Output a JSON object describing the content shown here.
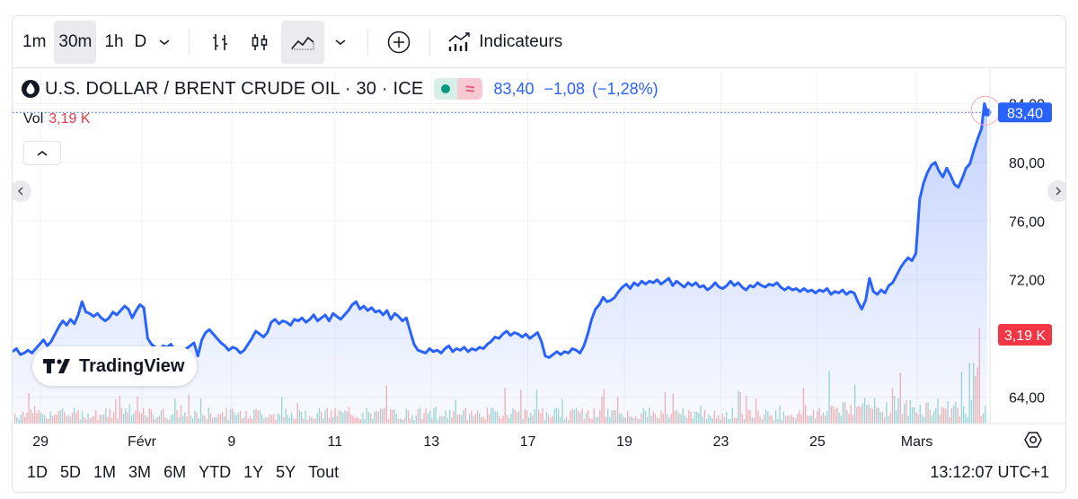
{
  "toolbar": {
    "intervals": [
      "1m",
      "30m",
      "1h",
      "D"
    ],
    "active_interval": "30m",
    "indicators_label": "Indicateurs"
  },
  "legend": {
    "title": "U.S. DOLLAR / BRENT CRUDE OIL · 30 · ICE",
    "price": "83,40",
    "change": "−1,08",
    "change_pct": "(−1,28%)",
    "vol_label": "Vol",
    "vol_value": "3,19 K"
  },
  "colors": {
    "line": "#2962ff",
    "up_volume": "#26a69a",
    "down_volume": "#ef5350",
    "price_tag": "#2962ff",
    "volume_tag": "#f23645"
  },
  "chart_data": {
    "type": "area",
    "ylim": [
      64,
      84
    ],
    "y_ticks": [
      "64,00",
      "68,00",
      "72,00",
      "76,00",
      "80,00",
      "84,00"
    ],
    "y_tick_values": [
      64,
      68,
      72,
      76,
      80,
      84
    ],
    "x_ticks": [
      "29",
      "Févr",
      "9",
      "11",
      "13",
      "17",
      "19",
      "23",
      "25",
      "Mars"
    ],
    "x_tick_positions": [
      0.5,
      11,
      20.3,
      31,
      41,
      51,
      61,
      71,
      81,
      91.3
    ],
    "x_range": [
      -2.4,
      98.6
    ],
    "price_label": "83,40",
    "volume_label": "3,19 K",
    "series": [
      {
        "values": [
          [
            -2.4,
            67.1
          ],
          [
            -2.0,
            67.3
          ],
          [
            -1.6,
            66.9
          ],
          [
            -1.2,
            67.0
          ],
          [
            -0.8,
            67.2
          ],
          [
            -0.4,
            67.0
          ],
          [
            0,
            67.3
          ],
          [
            0.4,
            67.6
          ],
          [
            0.8,
            67.9
          ],
          [
            1.2,
            67.5
          ],
          [
            1.6,
            67.8
          ],
          [
            2.0,
            68.3
          ],
          [
            2.4,
            68.8
          ],
          [
            2.8,
            69.2
          ],
          [
            3.2,
            68.9
          ],
          [
            3.6,
            69.3
          ],
          [
            4.0,
            69.0
          ],
          [
            4.4,
            69.6
          ],
          [
            4.8,
            70.5
          ],
          [
            5.2,
            69.8
          ],
          [
            5.6,
            69.7
          ],
          [
            6.0,
            69.5
          ],
          [
            6.4,
            69.7
          ],
          [
            6.8,
            69.4
          ],
          [
            7.2,
            69.2
          ],
          [
            7.6,
            69.4
          ],
          [
            8.0,
            69.8
          ],
          [
            8.4,
            69.6
          ],
          [
            8.8,
            69.9
          ],
          [
            9.2,
            70.2
          ],
          [
            9.6,
            70.0
          ],
          [
            10.0,
            69.4
          ],
          [
            10.4,
            69.9
          ],
          [
            10.8,
            70.3
          ],
          [
            11.2,
            70.1
          ],
          [
            11.6,
            68.0
          ],
          [
            12.0,
            67.6
          ],
          [
            12.4,
            67.4
          ],
          [
            12.8,
            67.2
          ],
          [
            13.2,
            67.5
          ],
          [
            13.6,
            67.4
          ],
          [
            14.0,
            67.6
          ],
          [
            14.4,
            67.2
          ],
          [
            14.8,
            66.9
          ],
          [
            15.2,
            67.0
          ],
          [
            15.6,
            67.3
          ],
          [
            16.0,
            67.5
          ],
          [
            16.4,
            67.7
          ],
          [
            16.8,
            66.8
          ],
          [
            17.2,
            67.9
          ],
          [
            17.6,
            68.4
          ],
          [
            18.0,
            68.6
          ],
          [
            18.4,
            68.3
          ],
          [
            18.8,
            68.0
          ],
          [
            19.2,
            67.7
          ],
          [
            19.6,
            67.5
          ],
          [
            20.0,
            67.2
          ],
          [
            20.4,
            67.4
          ],
          [
            20.8,
            67.3
          ],
          [
            21.2,
            67.0
          ],
          [
            21.6,
            67.2
          ],
          [
            22.0,
            67.6
          ],
          [
            22.4,
            68.0
          ],
          [
            22.8,
            68.5
          ],
          [
            23.2,
            68.3
          ],
          [
            23.6,
            68.1
          ],
          [
            24.0,
            68.4
          ],
          [
            24.4,
            69.1
          ],
          [
            24.8,
            69.3
          ],
          [
            25.2,
            69.0
          ],
          [
            25.6,
            69.2
          ],
          [
            26.0,
            69.1
          ],
          [
            26.4,
            68.9
          ],
          [
            26.8,
            69.3
          ],
          [
            27.2,
            69.2
          ],
          [
            27.6,
            69.4
          ],
          [
            28.0,
            69.1
          ],
          [
            28.4,
            69.3
          ],
          [
            28.8,
            69.6
          ],
          [
            29.2,
            69.2
          ],
          [
            29.6,
            69.4
          ],
          [
            30.0,
            69.6
          ],
          [
            30.4,
            69.2
          ],
          [
            30.8,
            69.7
          ],
          [
            31.2,
            69.5
          ],
          [
            31.6,
            69.3
          ],
          [
            32.0,
            69.6
          ],
          [
            32.4,
            69.9
          ],
          [
            32.8,
            70.3
          ],
          [
            33.2,
            70.5
          ],
          [
            33.6,
            70.0
          ],
          [
            34.0,
            70.2
          ],
          [
            34.4,
            69.9
          ],
          [
            34.8,
            70.1
          ],
          [
            35.2,
            69.8
          ],
          [
            35.6,
            69.9
          ],
          [
            36.0,
            69.6
          ],
          [
            36.4,
            69.9
          ],
          [
            36.8,
            69.3
          ],
          [
            37.2,
            69.7
          ],
          [
            37.6,
            69.5
          ],
          [
            38.0,
            69.2
          ],
          [
            38.4,
            69.4
          ],
          [
            38.8,
            68.5
          ],
          [
            39.2,
            67.6
          ],
          [
            39.6,
            67.2
          ],
          [
            40.0,
            67.1
          ],
          [
            40.4,
            67.0
          ],
          [
            40.8,
            67.3
          ],
          [
            41.2,
            67.1
          ],
          [
            41.6,
            67.2
          ],
          [
            42.0,
            67.0
          ],
          [
            42.4,
            67.3
          ],
          [
            42.8,
            67.5
          ],
          [
            43.2,
            67.1
          ],
          [
            43.6,
            67.3
          ],
          [
            44.0,
            67.2
          ],
          [
            44.4,
            67.4
          ],
          [
            44.8,
            67.1
          ],
          [
            45.2,
            67.3
          ],
          [
            45.6,
            67.2
          ],
          [
            46.0,
            67.4
          ],
          [
            46.4,
            67.3
          ],
          [
            46.8,
            67.6
          ],
          [
            47.2,
            67.8
          ],
          [
            47.6,
            68.1
          ],
          [
            48.0,
            68.0
          ],
          [
            48.4,
            68.3
          ],
          [
            48.8,
            68.5
          ],
          [
            49.2,
            68.2
          ],
          [
            49.6,
            68.4
          ],
          [
            50.0,
            68.3
          ],
          [
            50.4,
            68.1
          ],
          [
            50.8,
            68.3
          ],
          [
            51.2,
            68.0
          ],
          [
            51.6,
            68.2
          ],
          [
            52.0,
            68.4
          ],
          [
            52.4,
            67.8
          ],
          [
            52.8,
            66.8
          ],
          [
            53.2,
            66.7
          ],
          [
            53.6,
            66.9
          ],
          [
            54.0,
            67.1
          ],
          [
            54.4,
            66.9
          ],
          [
            54.8,
            67.1
          ],
          [
            55.2,
            67.0
          ],
          [
            55.6,
            67.3
          ],
          [
            56.0,
            67.2
          ],
          [
            56.4,
            67.0
          ],
          [
            56.8,
            67.5
          ],
          [
            57.2,
            68.3
          ],
          [
            57.6,
            69.3
          ],
          [
            58.0,
            70.0
          ],
          [
            58.4,
            70.3
          ],
          [
            58.8,
            70.8
          ],
          [
            59.2,
            70.5
          ],
          [
            59.6,
            70.6
          ],
          [
            60.0,
            70.8
          ],
          [
            60.4,
            71.2
          ],
          [
            60.8,
            71.5
          ],
          [
            61.2,
            71.7
          ],
          [
            61.6,
            71.4
          ],
          [
            62.0,
            71.8
          ],
          [
            62.4,
            71.6
          ],
          [
            62.8,
            71.9
          ],
          [
            63.2,
            71.7
          ],
          [
            63.6,
            71.9
          ],
          [
            64.0,
            71.8
          ],
          [
            64.4,
            72.0
          ],
          [
            64.8,
            71.7
          ],
          [
            65.2,
            71.9
          ],
          [
            65.6,
            72.1
          ],
          [
            66.0,
            71.6
          ],
          [
            66.4,
            71.9
          ],
          [
            66.8,
            71.7
          ],
          [
            67.2,
            71.5
          ],
          [
            67.6,
            71.8
          ],
          [
            68.0,
            71.6
          ],
          [
            68.4,
            71.8
          ],
          [
            68.8,
            71.5
          ],
          [
            69.2,
            71.6
          ],
          [
            69.6,
            71.3
          ],
          [
            70.0,
            71.5
          ],
          [
            70.4,
            71.8
          ],
          [
            70.8,
            71.5
          ],
          [
            71.2,
            71.4
          ],
          [
            71.6,
            71.6
          ],
          [
            72.0,
            71.9
          ],
          [
            72.4,
            71.6
          ],
          [
            72.8,
            71.8
          ],
          [
            73.2,
            71.5
          ],
          [
            73.6,
            71.3
          ],
          [
            74.0,
            71.6
          ],
          [
            74.4,
            71.5
          ],
          [
            74.8,
            71.8
          ],
          [
            75.2,
            71.6
          ],
          [
            75.6,
            71.5
          ],
          [
            76.0,
            71.7
          ],
          [
            76.4,
            71.6
          ],
          [
            76.8,
            71.8
          ],
          [
            77.2,
            71.5
          ],
          [
            77.6,
            71.3
          ],
          [
            78.0,
            71.5
          ],
          [
            78.4,
            71.3
          ],
          [
            78.8,
            71.4
          ],
          [
            79.2,
            71.2
          ],
          [
            79.6,
            71.4
          ],
          [
            80.0,
            71.2
          ],
          [
            80.4,
            71.3
          ],
          [
            80.8,
            71.1
          ],
          [
            81.2,
            71.3
          ],
          [
            81.6,
            71.2
          ],
          [
            82.0,
            71.4
          ],
          [
            82.4,
            71.0
          ],
          [
            82.8,
            71.2
          ],
          [
            83.2,
            71.1
          ],
          [
            83.6,
            71.3
          ],
          [
            84.0,
            71.0
          ],
          [
            84.4,
            71.2
          ],
          [
            84.8,
            71.1
          ],
          [
            85.2,
            70.5
          ],
          [
            85.6,
            70.0
          ],
          [
            86.0,
            70.6
          ],
          [
            86.4,
            72.1
          ],
          [
            86.8,
            71.2
          ],
          [
            87.2,
            71.0
          ],
          [
            87.6,
            71.3
          ],
          [
            88.0,
            71.1
          ],
          [
            88.4,
            71.6
          ],
          [
            88.8,
            71.8
          ],
          [
            89.2,
            72.3
          ],
          [
            89.6,
            72.8
          ],
          [
            90.0,
            73.2
          ],
          [
            90.4,
            73.5
          ],
          [
            90.8,
            73.3
          ],
          [
            91.2,
            73.8
          ],
          [
            91.6,
            77.5
          ],
          [
            92.0,
            78.6
          ],
          [
            92.4,
            79.3
          ],
          [
            92.8,
            79.8
          ],
          [
            93.2,
            80.0
          ],
          [
            93.6,
            79.4
          ],
          [
            94.0,
            79.0
          ],
          [
            94.4,
            79.6
          ],
          [
            94.8,
            79.1
          ],
          [
            95.2,
            78.5
          ],
          [
            95.6,
            78.3
          ],
          [
            96.0,
            78.9
          ],
          [
            96.4,
            79.6
          ],
          [
            96.8,
            79.9
          ],
          [
            97.2,
            80.8
          ],
          [
            97.6,
            81.6
          ],
          [
            98.0,
            82.3
          ],
          [
            98.3,
            84.0
          ],
          [
            98.6,
            83.4
          ]
        ]
      }
    ]
  },
  "bottombar": {
    "ranges": [
      "1D",
      "5D",
      "1M",
      "3M",
      "6M",
      "YTD",
      "1Y",
      "5Y",
      "Tout"
    ],
    "clock": "13:12:07 UTC+1"
  },
  "logo_text": "TradingView"
}
